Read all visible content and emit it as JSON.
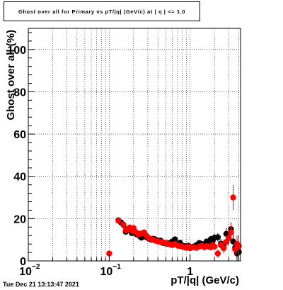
{
  "title": "Ghost over all for Primary vs pT/|q| (GeV/c) at | η | <= 1.0",
  "footer": "Tue Dec 21 13:13:47 2021",
  "chart_data": {
    "type": "scatter",
    "title": "Ghost over all for Primary vs pT/|q| (GeV/c) at | η | <= 1.0",
    "xlabel": "pT/|q| (GeV/c)",
    "ylabel": "Ghost over all (%)",
    "xscale": "log",
    "xlim": [
      0.01,
      4.2
    ],
    "ylim": [
      0,
      110
    ],
    "grid": true,
    "x_ticks": [
      {
        "value": 0.01,
        "label": "10",
        "exp": "−2"
      },
      {
        "value": 0.1,
        "label": "10",
        "exp": "−1"
      },
      {
        "value": 1,
        "label": "1",
        "exp": ""
      }
    ],
    "y_ticks": [
      0,
      20,
      40,
      60,
      80,
      100
    ],
    "series": [
      {
        "name": "",
        "color": "#000000",
        "points": [
          [
            0.13,
            19.2,
            0.5
          ],
          [
            0.14,
            18.2,
            0.5
          ],
          [
            0.15,
            17.0,
            0.6
          ],
          [
            0.16,
            13.8,
            0.6
          ],
          [
            0.17,
            14.6,
            0.6
          ],
          [
            0.18,
            15.0,
            0.6
          ],
          [
            0.19,
            13.2,
            0.6
          ],
          [
            0.2,
            14.0,
            0.6
          ],
          [
            0.21,
            13.0,
            0.6
          ],
          [
            0.22,
            12.5,
            0.6
          ],
          [
            0.23,
            12.8,
            0.6
          ],
          [
            0.24,
            11.6,
            0.6
          ],
          [
            0.25,
            11.0,
            0.6
          ],
          [
            0.27,
            12.3,
            0.6
          ],
          [
            0.29,
            11.2,
            0.6
          ],
          [
            0.31,
            10.5,
            0.6
          ],
          [
            0.33,
            10.0,
            0.6
          ],
          [
            0.35,
            10.5,
            0.7
          ],
          [
            0.37,
            10.2,
            0.7
          ],
          [
            0.4,
            9.5,
            0.7
          ],
          [
            0.43,
            9.6,
            0.7
          ],
          [
            0.46,
            8.5,
            0.7
          ],
          [
            0.5,
            8.2,
            0.7
          ],
          [
            0.53,
            8.5,
            0.8
          ],
          [
            0.57,
            8.0,
            0.8
          ],
          [
            0.6,
            9.2,
            0.8
          ],
          [
            0.65,
            10.2,
            0.8
          ],
          [
            0.7,
            7.5,
            0.8
          ],
          [
            0.75,
            8.6,
            0.8
          ],
          [
            0.8,
            7.2,
            0.8
          ],
          [
            0.85,
            7.0,
            0.9
          ],
          [
            0.9,
            6.8,
            0.9
          ],
          [
            0.95,
            7.2,
            0.9
          ],
          [
            1.0,
            6.5,
            0.9
          ],
          [
            1.1,
            6.8,
            1.0
          ],
          [
            1.2,
            7.5,
            1.0
          ],
          [
            1.3,
            8.5,
            1.1
          ],
          [
            1.4,
            8.0,
            1.2
          ],
          [
            1.5,
            7.8,
            1.3
          ],
          [
            1.6,
            9.2,
            1.4
          ],
          [
            1.7,
            8.2,
            1.5
          ],
          [
            1.8,
            10.3,
            1.6
          ],
          [
            1.9,
            9.5,
            1.7
          ],
          [
            2.0,
            11.0,
            1.8
          ],
          [
            2.2,
            11.2,
            2.0
          ],
          [
            2.4,
            8.2,
            2.2
          ],
          [
            2.6,
            7.5,
            2.4
          ],
          [
            2.8,
            12.8,
            2.8
          ],
          [
            3.0,
            10.8,
            3.0
          ],
          [
            3.2,
            15.0,
            3.2
          ],
          [
            3.4,
            9.2,
            3.4
          ],
          [
            3.6,
            6.2,
            3.6
          ],
          [
            3.8,
            3.5,
            3.8
          ],
          [
            4.0,
            4.2,
            4.0
          ]
        ]
      },
      {
        "name": "",
        "color": "#ff0000",
        "points": [
          [
            0.1,
            3.5,
            1.0
          ],
          [
            0.13,
            19.0,
            0.5
          ],
          [
            0.15,
            17.2,
            0.6
          ],
          [
            0.16,
            14.5,
            0.6
          ],
          [
            0.17,
            15.2,
            0.6
          ],
          [
            0.18,
            15.8,
            0.6
          ],
          [
            0.19,
            14.3,
            0.6
          ],
          [
            0.2,
            15.5,
            0.6
          ],
          [
            0.21,
            13.8,
            0.6
          ],
          [
            0.22,
            13.2,
            0.6
          ],
          [
            0.23,
            12.5,
            0.6
          ],
          [
            0.25,
            13.0,
            0.6
          ],
          [
            0.27,
            13.5,
            0.6
          ],
          [
            0.29,
            11.8,
            0.6
          ],
          [
            0.31,
            10.8,
            0.6
          ],
          [
            0.33,
            10.2,
            0.6
          ],
          [
            0.35,
            10.0,
            0.7
          ],
          [
            0.37,
            9.6,
            0.7
          ],
          [
            0.4,
            9.2,
            0.7
          ],
          [
            0.43,
            9.0,
            0.7
          ],
          [
            0.46,
            8.8,
            0.7
          ],
          [
            0.5,
            8.5,
            0.7
          ],
          [
            0.53,
            8.0,
            0.8
          ],
          [
            0.57,
            7.8,
            0.8
          ],
          [
            0.6,
            7.5,
            0.8
          ],
          [
            0.65,
            8.0,
            0.8
          ],
          [
            0.7,
            7.2,
            0.8
          ],
          [
            0.75,
            7.0,
            0.8
          ],
          [
            0.8,
            6.8,
            0.8
          ],
          [
            0.85,
            6.5,
            0.9
          ],
          [
            0.9,
            6.2,
            0.9
          ],
          [
            0.95,
            6.8,
            0.9
          ],
          [
            1.0,
            6.0,
            0.9
          ],
          [
            1.1,
            6.5,
            1.0
          ],
          [
            1.2,
            6.2,
            1.0
          ],
          [
            1.3,
            6.8,
            1.1
          ],
          [
            1.4,
            7.2,
            1.2
          ],
          [
            1.5,
            6.5,
            1.3
          ],
          [
            1.6,
            7.0,
            1.4
          ],
          [
            1.7,
            6.8,
            1.5
          ],
          [
            1.8,
            6.5,
            1.6
          ],
          [
            1.9,
            7.5,
            1.7
          ],
          [
            2.0,
            6.8,
            1.8
          ],
          [
            2.2,
            3.5,
            2.0
          ],
          [
            2.4,
            7.5,
            2.2
          ],
          [
            2.6,
            6.0,
            2.4
          ],
          [
            2.8,
            9.0,
            2.8
          ],
          [
            3.0,
            11.0,
            3.5
          ],
          [
            3.2,
            13.5,
            4.0
          ],
          [
            3.4,
            30.0,
            6.0
          ],
          [
            3.6,
            5.5,
            3.0
          ],
          [
            3.8,
            8.0,
            4.0
          ],
          [
            4.0,
            7.0,
            5.0
          ]
        ]
      }
    ]
  }
}
